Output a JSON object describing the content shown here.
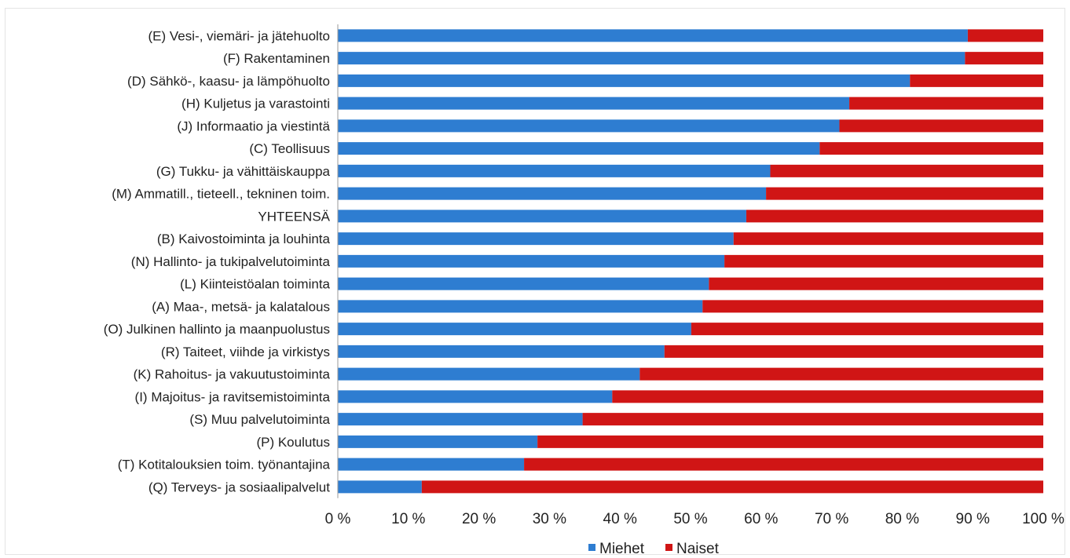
{
  "chart_data": {
    "type": "bar",
    "orientation": "horizontal",
    "stacked": true,
    "percent_stacked": true,
    "categories": [
      "(E) Vesi-, viemäri- ja jätehuolto",
      "(F) Rakentaminen",
      "(D) Sähkö-, kaasu- ja lämpöhuolto",
      "(H) Kuljetus ja varastointi",
      "(J) Informaatio ja viestintä",
      "(C) Teollisuus",
      "(G) Tukku- ja vähittäiskauppa",
      "(M) Ammatill., tieteell., tekninen toim.",
      "YHTEENSÄ",
      "(B) Kaivostoiminta ja louhinta",
      "(N) Hallinto- ja tukipalvelutoiminta",
      "(L) Kiinteistöalan toiminta",
      "(A) Maa-, metsä- ja kalatalous",
      "(O) Julkinen hallinto ja maanpuolustus",
      "(R) Taiteet, viihde ja virkistys",
      "(K) Rahoitus- ja vakuutustoiminta",
      "(I) Majoitus- ja ravitsemistoiminta",
      "(S) Muu palvelutoiminta",
      "(P) Koulutus",
      "(T) Kotitalouksien toim. työnantajina",
      "(Q) Terveys- ja sosiaalipalvelut"
    ],
    "series": [
      {
        "name": "Miehet",
        "color": "#2e7dd1",
        "values": [
          89.3,
          88.9,
          81.1,
          72.5,
          71.1,
          68.3,
          61.3,
          60.7,
          57.9,
          56.1,
          54.8,
          52.6,
          51.7,
          50.1,
          46.3,
          42.8,
          38.9,
          34.7,
          28.3,
          26.4,
          11.9
        ]
      },
      {
        "name": "Naiset",
        "color": "#d01515",
        "values": [
          10.7,
          11.1,
          18.9,
          27.5,
          28.9,
          31.7,
          38.7,
          39.3,
          42.1,
          43.9,
          45.2,
          47.4,
          48.3,
          49.9,
          53.7,
          57.2,
          61.1,
          65.3,
          71.7,
          73.6,
          88.1
        ]
      }
    ],
    "xlim": [
      0,
      100
    ],
    "xticks": [
      "0 %",
      "10 %",
      "20 %",
      "30 %",
      "40 %",
      "50 %",
      "60 %",
      "70 %",
      "80 %",
      "90 %",
      "100 %"
    ],
    "xlabel": "",
    "ylabel": "",
    "title": "",
    "grid": false,
    "legend": "bottom-center"
  }
}
